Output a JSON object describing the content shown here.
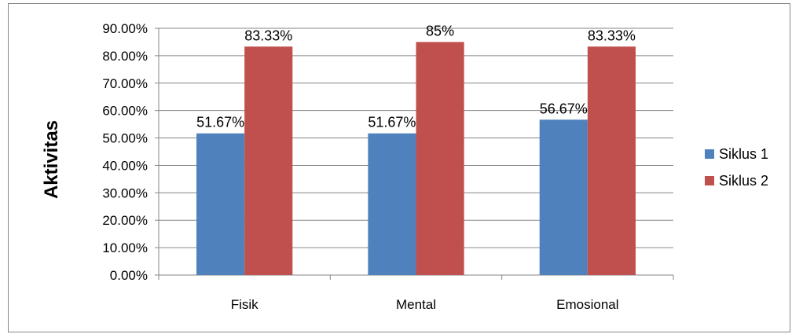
{
  "chart_data": {
    "type": "bar",
    "title": "",
    "xlabel": "",
    "ylabel": "Aktivitas",
    "categories": [
      "Fisik",
      "Mental",
      "Emosional"
    ],
    "series": [
      {
        "name": "Siklus 1",
        "color": "#4F81BD",
        "values": [
          51.67,
          51.67,
          56.67
        ],
        "labels": [
          "51.67%",
          "51.67%",
          "56.67%"
        ]
      },
      {
        "name": "Siklus 2",
        "color": "#C0504D",
        "values": [
          83.33,
          85,
          83.33
        ],
        "labels": [
          "83.33%",
          "85%",
          "83.33%"
        ]
      }
    ],
    "ylim": [
      0,
      90
    ],
    "yticks": [
      0,
      10,
      20,
      30,
      40,
      50,
      60,
      70,
      80,
      90
    ],
    "ytick_labels": [
      "0.00%",
      "10.00%",
      "20.00%",
      "30.00%",
      "40.00%",
      "50.00%",
      "60.00%",
      "70.00%",
      "80.00%",
      "90.00%"
    ],
    "grid": true,
    "legend_position": "right"
  }
}
